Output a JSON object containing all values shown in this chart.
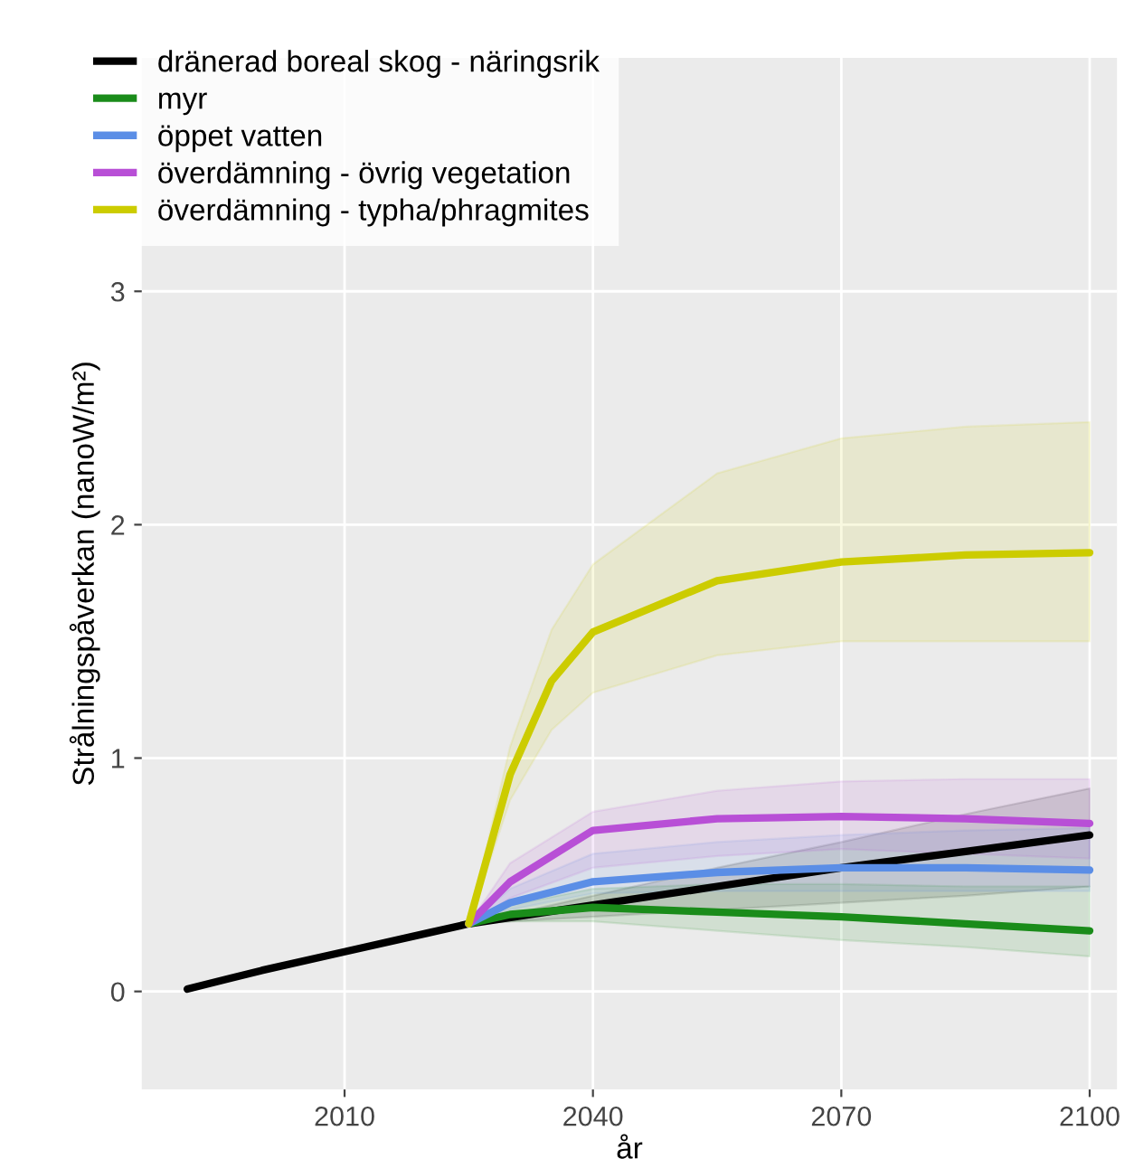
{
  "chart_data": {
    "type": "line",
    "xlabel": "år",
    "ylabel": "Strålningspåverkan (nanoW/m²)",
    "xlim": [
      1985.5,
      2103.3
    ],
    "ylim": [
      -0.42,
      4.0
    ],
    "xticks": [
      2010,
      2040,
      2070,
      2100
    ],
    "yticks": [
      0,
      1,
      2,
      3
    ],
    "grid": true,
    "legend": "top left",
    "series": [
      {
        "name": "dränerad boreal skog - näringsrik",
        "color": "#000000",
        "x": [
          1991,
          2000,
          2010,
          2020,
          2025,
          2040,
          2055,
          2070,
          2085,
          2100
        ],
        "values": [
          0.01,
          0.09,
          0.17,
          0.25,
          0.29,
          0.37,
          0.45,
          0.53,
          0.6,
          0.67
        ],
        "lower": [
          null,
          null,
          null,
          null,
          0.29,
          0.32,
          0.35,
          0.38,
          0.41,
          0.45
        ],
        "upper": [
          null,
          null,
          null,
          null,
          0.29,
          0.41,
          0.53,
          0.64,
          0.76,
          0.87
        ]
      },
      {
        "name": "myr",
        "color": "#1a8c1a",
        "x": [
          2025,
          2030,
          2040,
          2055,
          2070,
          2085,
          2100
        ],
        "values": [
          0.29,
          0.33,
          0.36,
          0.34,
          0.32,
          0.29,
          0.26
        ],
        "lower": [
          0.29,
          0.3,
          0.3,
          0.26,
          0.22,
          0.19,
          0.15
        ],
        "upper": [
          0.29,
          0.37,
          0.44,
          0.46,
          0.46,
          0.45,
          0.45
        ]
      },
      {
        "name": "öppet vatten",
        "color": "#5b8ee6",
        "x": [
          2025,
          2030,
          2040,
          2055,
          2070,
          2085,
          2100
        ],
        "values": [
          0.29,
          0.38,
          0.47,
          0.51,
          0.53,
          0.53,
          0.52
        ],
        "lower": [
          0.29,
          0.35,
          0.42,
          0.43,
          0.43,
          0.43,
          0.43
        ],
        "upper": [
          0.29,
          0.44,
          0.59,
          0.64,
          0.67,
          0.69,
          0.7
        ]
      },
      {
        "name": "överdämning - övrig vegetation",
        "color": "#b84fd6",
        "x": [
          2025,
          2030,
          2040,
          2055,
          2070,
          2085,
          2100
        ],
        "values": [
          0.29,
          0.47,
          0.69,
          0.74,
          0.75,
          0.74,
          0.72
        ],
        "lower": [
          0.29,
          0.4,
          0.53,
          0.58,
          0.61,
          0.59,
          0.57
        ],
        "upper": [
          0.29,
          0.55,
          0.77,
          0.86,
          0.9,
          0.91,
          0.91
        ]
      },
      {
        "name": "överdämning - typha/phragmites",
        "color": "#cccc00",
        "x": [
          2025,
          2030,
          2035,
          2040,
          2055,
          2070,
          2085,
          2100
        ],
        "values": [
          0.29,
          0.93,
          1.33,
          1.54,
          1.76,
          1.84,
          1.87,
          1.88
        ],
        "lower": [
          0.29,
          0.82,
          1.12,
          1.28,
          1.44,
          1.5,
          1.5,
          1.5
        ],
        "upper": [
          0.29,
          1.05,
          1.55,
          1.83,
          2.22,
          2.37,
          2.42,
          2.44
        ]
      }
    ]
  }
}
